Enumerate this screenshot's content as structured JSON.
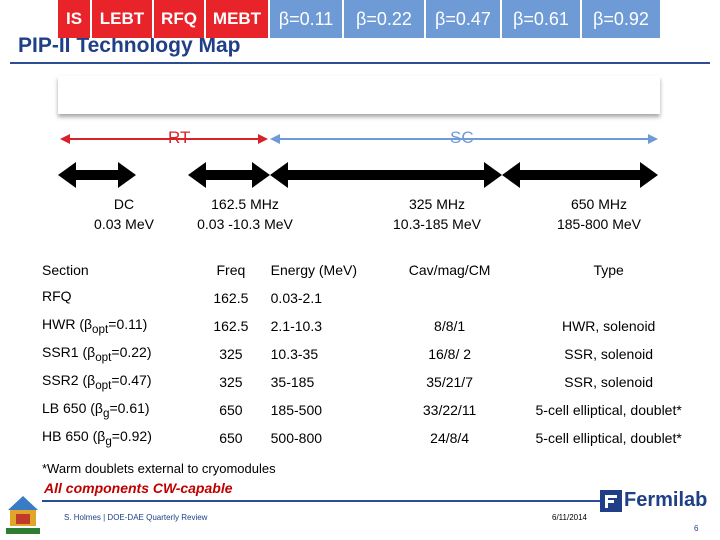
{
  "title": "PIP-II Technology Map",
  "segments": [
    {
      "label": "IS",
      "kind": "red"
    },
    {
      "label": "LEBT",
      "kind": "red"
    },
    {
      "label": "RFQ",
      "kind": "red"
    },
    {
      "label": "MEBT",
      "kind": "red"
    },
    {
      "label": "β=0.11",
      "kind": "blue"
    },
    {
      "label": "β=0.22",
      "kind": "blue"
    },
    {
      "label": "β=0.47",
      "kind": "blue"
    },
    {
      "label": "β=0.61",
      "kind": "blue"
    },
    {
      "label": "β=0.92",
      "kind": "blue"
    }
  ],
  "rt_label": "RT",
  "sc_label": "SC",
  "freq_labels": [
    {
      "line1": "DC",
      "line2": "0.03 MeV"
    },
    {
      "line1": "162.5 MHz",
      "line2": "0.03 -10.3 MeV"
    },
    {
      "line1": "325 MHz",
      "line2": "10.3-185 MeV"
    },
    {
      "line1": "650 MHz",
      "line2": "185-800 MeV"
    }
  ],
  "table": {
    "headers": {
      "section": "Section",
      "freq": "Freq",
      "energy": "Energy (MeV)",
      "cav": "Cav/mag/CM",
      "type": "Type"
    },
    "rows": [
      {
        "section": "RFQ",
        "sub": "",
        "rest": "",
        "freq": "162.5",
        "energy": "0.03-2.1",
        "cav": "",
        "type": ""
      },
      {
        "section": "HWR (β",
        "sub": "opt",
        "rest": "=0.11)",
        "freq": "162.5",
        "energy": "2.1-10.3",
        "cav": "8/8/1",
        "type": "HWR, solenoid"
      },
      {
        "section": "SSR1 (β",
        "sub": "opt",
        "rest": "=0.22)",
        "freq": "325",
        "energy": "10.3-35",
        "cav": "16/8/ 2",
        "type": "SSR, solenoid"
      },
      {
        "section": "SSR2 (β",
        "sub": "opt",
        "rest": "=0.47)",
        "freq": "325",
        "energy": "35-185",
        "cav": "35/21/7",
        "type": "SSR, solenoid"
      },
      {
        "section": "LB 650 (β",
        "sub": "g",
        "rest": "=0.61)",
        "freq": "650",
        "energy": "185-500",
        "cav": "33/22/11",
        "type": "5-cell elliptical, doublet*"
      },
      {
        "section": "HB 650 (β",
        "sub": "g",
        "rest": "=0.92)",
        "freq": "650",
        "energy": "500-800",
        "cav": "24/8/4",
        "type": "5-cell elliptical, doublet*"
      }
    ]
  },
  "footnote": "*Warm doublets external to cryomodules",
  "cw_note": "All components CW-capable",
  "footer": {
    "author": "S. Holmes | DOE-DAE Quarterly Review",
    "date": "6/11/2014",
    "page": "6",
    "brand": "Fermilab"
  },
  "colors": {
    "red": "#e8232a",
    "blue": "#6e9bd5",
    "title": "#1f3f86"
  }
}
